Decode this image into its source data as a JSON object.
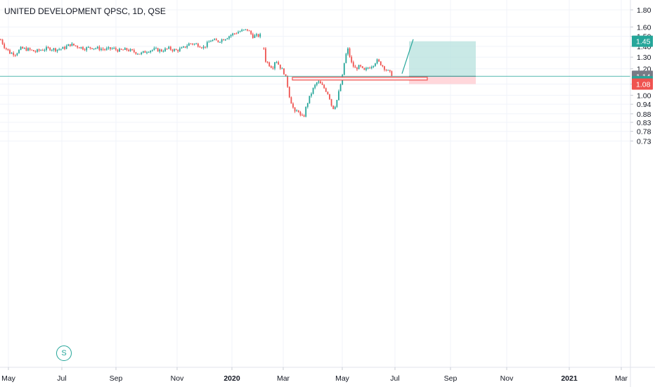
{
  "header": {
    "title": "UNITED DEVELOPMENT QPSC, 1D, QSE"
  },
  "chart_data": {
    "type": "candlestick",
    "title": "UNITED DEVELOPMENT QPSC, 1D, QSE",
    "y_axis": {
      "scale": "log",
      "position": "right",
      "tick_labels": [
        "1.80",
        "1.60",
        "1.50",
        "1.40",
        "1.30",
        "1.20",
        "1.08",
        "1.00",
        "0.94",
        "0.88",
        "0.83",
        "0.78",
        "0.73"
      ],
      "range": [
        0.715,
        1.84
      ]
    },
    "x_axis": {
      "tick_labels": [
        "May",
        "Jul",
        "Sep",
        "Nov",
        "2020",
        "Mar",
        "May",
        "Jul",
        "Sep",
        "Nov",
        "2021",
        "Mar"
      ]
    },
    "price_tags": [
      {
        "label": "1.45",
        "value": 1.45,
        "color": "#26a69a"
      },
      {
        "label": "1.14",
        "value": 1.14,
        "color": "#787b86"
      },
      {
        "label": "1.13",
        "value": 1.13,
        "color": "#26a69a"
      },
      {
        "label": "1.08",
        "value": 1.08,
        "color": "#ef5350"
      }
    ],
    "current_price": 1.14,
    "long_position": {
      "entry": 1.14,
      "target": 1.45,
      "stop": 1.08,
      "target_color": "#b2dfdb",
      "stop_color": "#ffcdd2"
    },
    "support_zone": {
      "top": 1.132,
      "bottom": 1.118,
      "color": "#ef5350"
    },
    "projection_line": {
      "from": 1.16,
      "to": 1.47
    },
    "marker": {
      "label": "S"
    },
    "up_color": "#26a69a",
    "down_color": "#ef5350",
    "price_path": [
      [
        0,
        1.48
      ],
      [
        6,
        1.4
      ],
      [
        14,
        1.34
      ],
      [
        22,
        1.33
      ],
      [
        30,
        1.38
      ],
      [
        40,
        1.37
      ],
      [
        50,
        1.35
      ],
      [
        60,
        1.37
      ],
      [
        70,
        1.38
      ],
      [
        80,
        1.37
      ],
      [
        90,
        1.38
      ],
      [
        100,
        1.42
      ],
      [
        110,
        1.4
      ],
      [
        120,
        1.38
      ],
      [
        130,
        1.39
      ],
      [
        140,
        1.38
      ],
      [
        150,
        1.37
      ],
      [
        160,
        1.38
      ],
      [
        170,
        1.36
      ],
      [
        180,
        1.37
      ],
      [
        190,
        1.35
      ],
      [
        200,
        1.33
      ],
      [
        210,
        1.36
      ],
      [
        220,
        1.37
      ],
      [
        230,
        1.36
      ],
      [
        240,
        1.38
      ],
      [
        250,
        1.36
      ],
      [
        260,
        1.38
      ],
      [
        270,
        1.43
      ],
      [
        280,
        1.42
      ],
      [
        290,
        1.39
      ],
      [
        300,
        1.46
      ],
      [
        310,
        1.45
      ],
      [
        320,
        1.48
      ],
      [
        330,
        1.52
      ],
      [
        340,
        1.55
      ],
      [
        352,
        1.57
      ],
      [
        360,
        1.5
      ],
      [
        372,
        1.51
      ],
      [
        375,
        1.4
      ],
      [
        378,
        1.27
      ],
      [
        382,
        1.24
      ],
      [
        388,
        1.21
      ],
      [
        392,
        1.28
      ],
      [
        398,
        1.22
      ],
      [
        404,
        1.17
      ],
      [
        408,
        1.1
      ],
      [
        412,
        0.99
      ],
      [
        416,
        0.93
      ],
      [
        420,
        0.88
      ],
      [
        424,
        0.91
      ],
      [
        428,
        0.86
      ],
      [
        432,
        0.86
      ],
      [
        436,
        0.93
      ],
      [
        440,
        0.98
      ],
      [
        446,
        1.05
      ],
      [
        452,
        1.1
      ],
      [
        458,
        1.07
      ],
      [
        463,
        1.04
      ],
      [
        468,
        1.0
      ],
      [
        473,
        0.91
      ],
      [
        478,
        0.94
      ],
      [
        483,
        1.04
      ],
      [
        487,
        1.13
      ],
      [
        491,
        1.3
      ],
      [
        495,
        1.37
      ],
      [
        500,
        1.25
      ],
      [
        505,
        1.2
      ],
      [
        512,
        1.22
      ],
      [
        518,
        1.18
      ],
      [
        524,
        1.21
      ],
      [
        530,
        1.23
      ],
      [
        536,
        1.27
      ],
      [
        542,
        1.24
      ],
      [
        548,
        1.2
      ],
      [
        554,
        1.17
      ],
      [
        560,
        1.14
      ]
    ]
  }
}
